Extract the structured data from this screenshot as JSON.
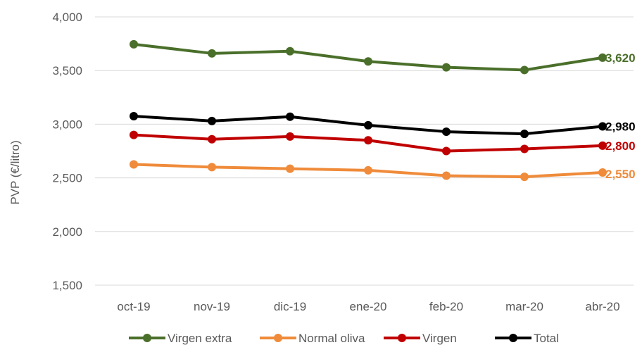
{
  "chart_data": {
    "type": "line",
    "title": "",
    "xlabel": "",
    "ylabel": "PVP (€/litro)",
    "ylim": [
      1500,
      4000
    ],
    "yticks": [
      1500,
      2000,
      2500,
      3000,
      3500,
      4000
    ],
    "ytick_labels": [
      "1,500",
      "2,000",
      "2,500",
      "3,000",
      "3,500",
      "4,000"
    ],
    "categories": [
      "oct-19",
      "nov-19",
      "dic-19",
      "ene-20",
      "feb-20",
      "mar-20",
      "abr-20"
    ],
    "grid": "horizontal",
    "legend_position": "bottom",
    "series": [
      {
        "name": "Virgen extra",
        "color": "#4a6f2a",
        "values": [
          3745,
          3660,
          3680,
          3585,
          3530,
          3505,
          3620
        ],
        "end_label": "3,620"
      },
      {
        "name": "Normal oliva",
        "color": "#ef8b3a",
        "values": [
          2625,
          2600,
          2585,
          2570,
          2520,
          2510,
          2550
        ],
        "end_label": "2,550"
      },
      {
        "name": "Virgen",
        "color": "#c00000",
        "values": [
          2900,
          2860,
          2885,
          2850,
          2750,
          2770,
          2800
        ],
        "end_label": "2,800"
      },
      {
        "name": "Total",
        "color": "#000000",
        "values": [
          3075,
          3030,
          3070,
          2990,
          2930,
          2910,
          2980
        ],
        "end_label": "2,980"
      }
    ]
  }
}
